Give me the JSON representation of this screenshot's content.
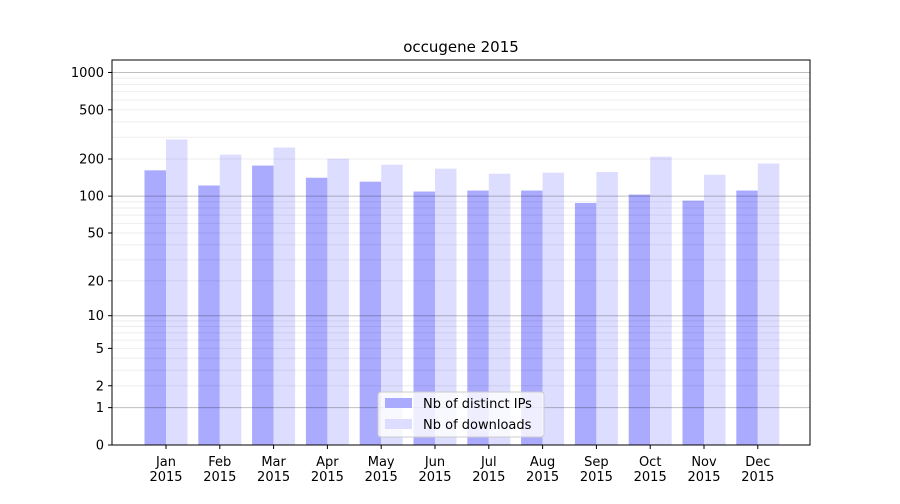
{
  "chart_data": {
    "type": "bar",
    "title": "occugene 2015",
    "xlabel": "",
    "ylabel": "",
    "yscale": "log(1+y)",
    "ylim": [
      0,
      1260
    ],
    "yticks": [
      0,
      1,
      2,
      5,
      10,
      20,
      50,
      100,
      200,
      500,
      1000
    ],
    "grid": true,
    "legend_position": "bottom-center",
    "categories": [
      "Jan\n2015",
      "Feb\n2015",
      "Mar\n2015",
      "Apr\n2015",
      "May\n2015",
      "Jun\n2015",
      "Jul\n2015",
      "Aug\n2015",
      "Sep\n2015",
      "Oct\n2015",
      "Nov\n2015",
      "Dec\n2015"
    ],
    "series": [
      {
        "name": "Nb of distinct IPs",
        "color": "#aaaaff",
        "values": [
          162,
          122,
          177,
          141,
          131,
          109,
          111,
          111,
          88,
          103,
          92,
          111
        ]
      },
      {
        "name": "Nb of downloads",
        "color": "#ddddff",
        "values": [
          288,
          217,
          248,
          201,
          180,
          167,
          152,
          155,
          157,
          209,
          149,
          184
        ]
      }
    ]
  }
}
